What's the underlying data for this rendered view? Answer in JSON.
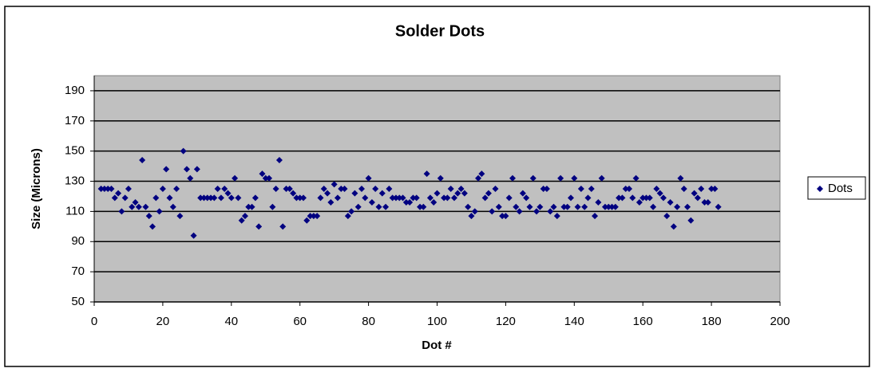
{
  "chart_data": {
    "type": "scatter",
    "title": "Solder Dots",
    "x_label": "Dot #",
    "y_label": "Size (Microns)",
    "xlim": [
      0,
      200
    ],
    "xticks": [
      0,
      20,
      40,
      60,
      80,
      100,
      120,
      140,
      160,
      180,
      200
    ],
    "ylim": [
      50,
      200
    ],
    "yticks": [
      50,
      70,
      90,
      110,
      130,
      150,
      170,
      190
    ],
    "grid": true,
    "legend": "right",
    "series": [
      {
        "name": "Dots",
        "color": "#000080",
        "x": [
          2,
          3,
          4,
          5,
          6,
          7,
          8,
          9,
          10,
          11,
          12,
          13,
          14,
          15,
          16,
          17,
          18,
          19,
          20,
          21,
          22,
          23,
          24,
          25,
          26,
          27,
          28,
          29,
          30,
          31,
          32,
          33,
          34,
          35,
          36,
          37,
          38,
          39,
          40,
          41,
          42,
          43,
          44,
          45,
          46,
          47,
          48,
          49,
          50,
          51,
          52,
          53,
          54,
          55,
          56,
          57,
          58,
          59,
          60,
          61,
          62,
          63,
          64,
          65,
          66,
          67,
          68,
          69,
          70,
          71,
          72,
          73,
          74,
          75,
          76,
          77,
          78,
          79,
          80,
          81,
          82,
          83,
          84,
          85,
          86,
          87,
          88,
          89,
          90,
          91,
          92,
          93,
          94,
          95,
          96,
          97,
          98,
          99,
          100,
          101,
          102,
          103,
          104,
          105,
          106,
          107,
          108,
          109,
          110,
          111,
          112,
          113,
          114,
          115,
          116,
          117,
          118,
          119,
          120,
          121,
          122,
          123,
          124,
          125,
          126,
          127,
          128,
          129,
          130,
          131,
          132,
          133,
          134,
          135,
          136,
          137,
          138,
          139,
          140,
          141,
          142,
          143,
          144,
          145,
          146,
          147,
          148,
          149,
          150,
          151,
          152,
          153,
          154,
          155,
          156,
          157,
          158,
          159,
          160,
          161,
          162,
          163,
          164,
          165,
          166,
          167,
          168,
          169,
          170,
          171,
          172,
          173,
          174,
          175,
          176,
          177,
          178,
          179,
          180,
          181,
          182
        ],
        "values": [
          125,
          125,
          125,
          125,
          119,
          122,
          110,
          119,
          125,
          113,
          116,
          113,
          144,
          113,
          107,
          100,
          119,
          110,
          125,
          138,
          119,
          113,
          125,
          107,
          150,
          138,
          132,
          94,
          138,
          119,
          119,
          119,
          119,
          119,
          125,
          119,
          125,
          122,
          119,
          132,
          119,
          104,
          107,
          113,
          113,
          119,
          100,
          135,
          132,
          132,
          113,
          125,
          144,
          100,
          125,
          125,
          122,
          119,
          119,
          119,
          104,
          107,
          107,
          107,
          119,
          125,
          122,
          116,
          128,
          119,
          125,
          125,
          107,
          110,
          122,
          113,
          125,
          119,
          132,
          116,
          125,
          113,
          122,
          113,
          125,
          119,
          119,
          119,
          119,
          116,
          116,
          119,
          119,
          113,
          113,
          135,
          119,
          116,
          122,
          132,
          119,
          119,
          125,
          119,
          122,
          125,
          122,
          113,
          107,
          110,
          132,
          135,
          119,
          122,
          110,
          125,
          113,
          107,
          107,
          119,
          132,
          113,
          110,
          122,
          119,
          113,
          132,
          110,
          113,
          125,
          125,
          110,
          113,
          107,
          132,
          113,
          113,
          119,
          132,
          113,
          125,
          113,
          119,
          125,
          107,
          116,
          132,
          113,
          113,
          113,
          113,
          119,
          119,
          125,
          125,
          119,
          132,
          116,
          119,
          119,
          119,
          113,
          125,
          122,
          119,
          107,
          116,
          100,
          113,
          132,
          125,
          113,
          104,
          122,
          119,
          125,
          116,
          116,
          125,
          125,
          113
        ]
      }
    ]
  }
}
